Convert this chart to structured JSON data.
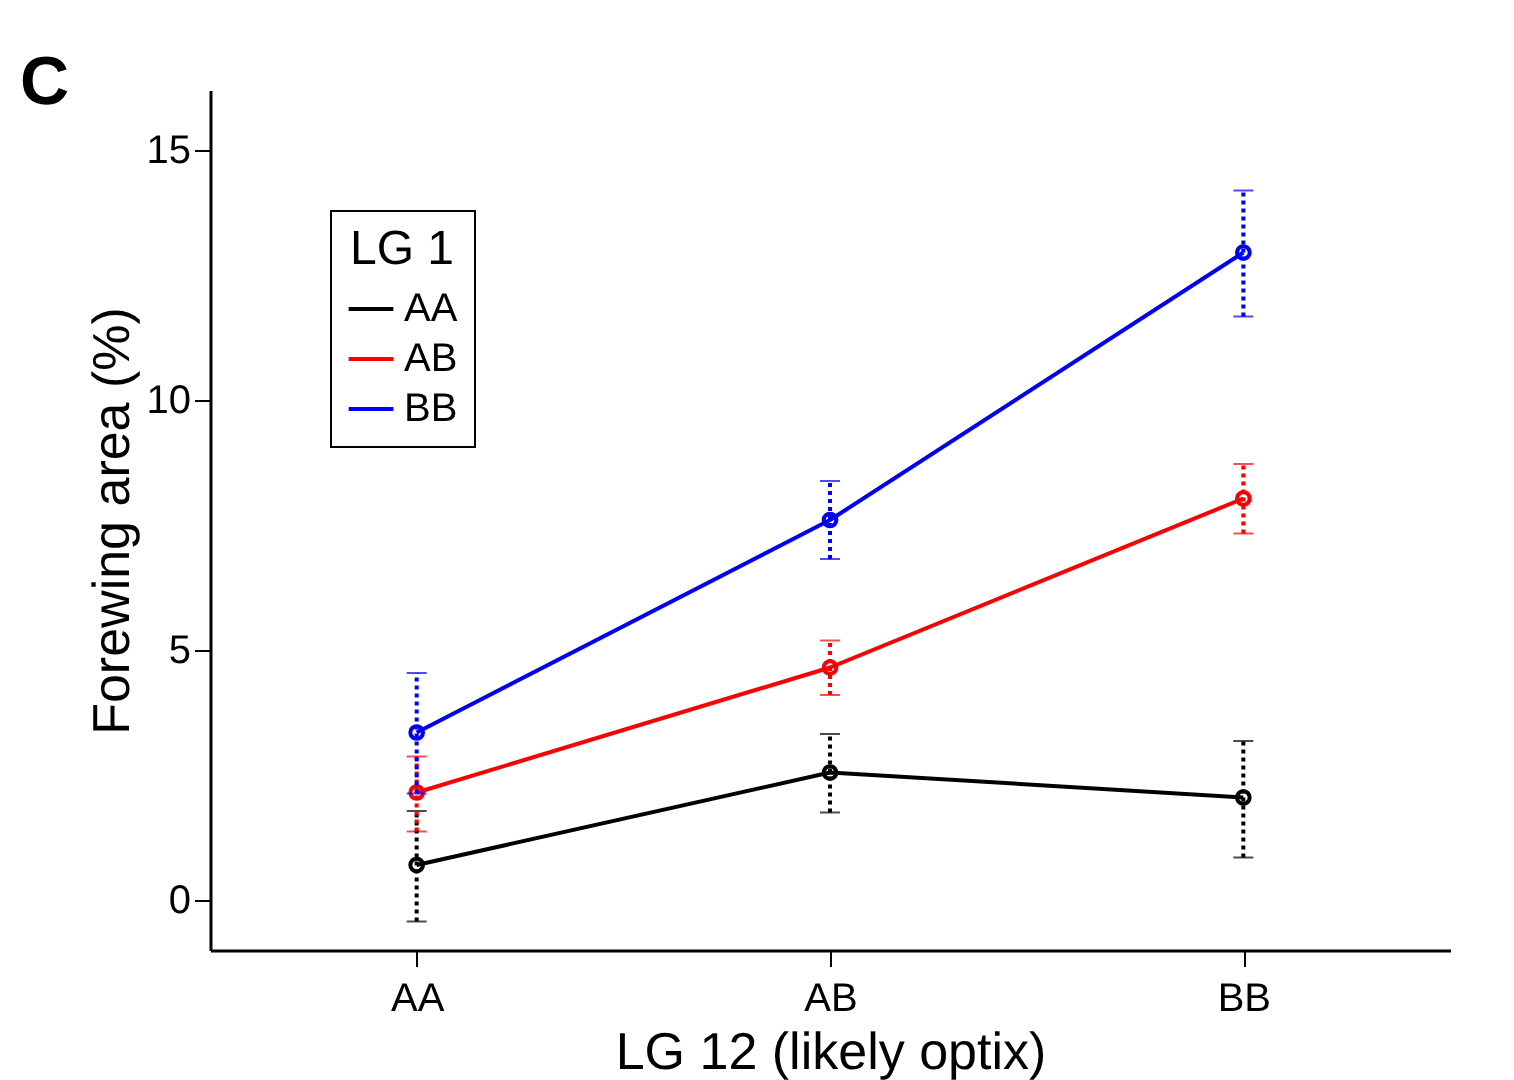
{
  "chart_data": {
    "type": "line",
    "annotations": [
      "C"
    ],
    "xlabel": "LG 12 (likely optix)",
    "ylabel": "Forewing area (%)",
    "legend_title": "LG 1",
    "categories": [
      "AA",
      "AB",
      "BB"
    ],
    "series": [
      {
        "name": "AA",
        "color": "#000000",
        "values": [
          0.7,
          2.55,
          2.05
        ],
        "errors": [
          [
            -0.43,
            1.78
          ],
          [
            1.75,
            3.32
          ],
          [
            0.85,
            3.18
          ]
        ]
      },
      {
        "name": "AB",
        "color": "#ff0000",
        "values": [
          2.15,
          4.65,
          8.03
        ],
        "errors": [
          [
            1.37,
            2.87
          ],
          [
            4.1,
            5.19
          ],
          [
            7.33,
            8.72
          ]
        ]
      },
      {
        "name": "BB",
        "color": "#0000ff",
        "values": [
          3.35,
          7.6,
          12.95
        ],
        "errors": [
          [
            2.13,
            4.54
          ],
          [
            6.82,
            8.38
          ],
          [
            11.67,
            14.19
          ]
        ]
      }
    ],
    "ylim": [
      -1,
      16.2
    ],
    "yticks": [
      0,
      5,
      10,
      15
    ],
    "grid": false,
    "legend": "top left",
    "marker": "circle",
    "line_style": "solid"
  }
}
